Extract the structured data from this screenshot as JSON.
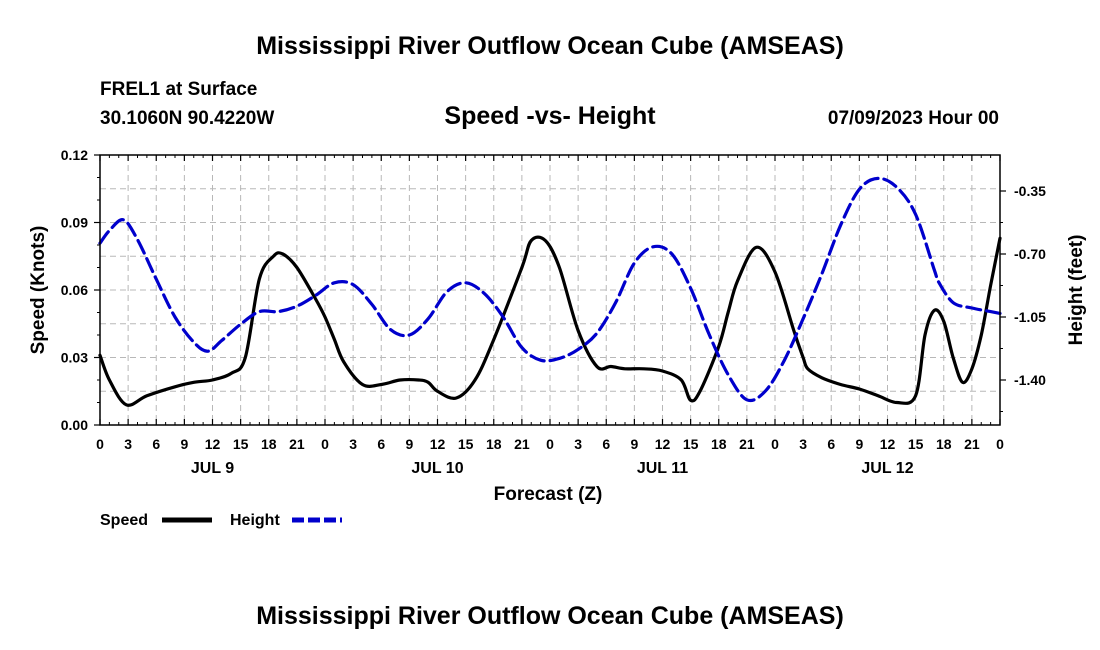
{
  "page": {
    "title_top": "Mississippi River Outflow Ocean Cube (AMSEAS)",
    "station": "FREL1 at Surface",
    "coords": "30.1060N  90.4220W",
    "date": "07/09/2023 Hour 00",
    "title_bottom": "Mississippi River Outflow Ocean Cube (AMSEAS)"
  },
  "colors": {
    "speed": "#000000",
    "height": "#0000cc"
  },
  "chart_data": {
    "type": "line",
    "title": "Speed -vs- Height",
    "xlabel": "Forecast (Z)",
    "ylabel": "Speed (Knots)",
    "y2label": "Height (feet)",
    "xlim": [
      0,
      96
    ],
    "ylim": [
      0,
      0.12
    ],
    "y2lim": [
      -1.65,
      -0.15
    ],
    "yticks": [
      "0.00",
      "0.03",
      "0.06",
      "0.09",
      "0.12"
    ],
    "y2ticks": [
      "-0.35",
      "-0.70",
      "-1.05",
      "-1.40"
    ],
    "xtick_labels": [
      "0",
      "3",
      "6",
      "9",
      "12",
      "15",
      "18",
      "21",
      "0",
      "3",
      "6",
      "9",
      "12",
      "15",
      "18",
      "21",
      "0",
      "3",
      "6",
      "9",
      "12",
      "15",
      "18",
      "21",
      "0",
      "3",
      "6",
      "9",
      "12",
      "15",
      "18",
      "21",
      "0"
    ],
    "day_labels": [
      {
        "label": "JUL 9",
        "hour": 12
      },
      {
        "label": "JUL 10",
        "hour": 36
      },
      {
        "label": "JUL 11",
        "hour": 60
      },
      {
        "label": "JUL 12",
        "hour": 84
      }
    ],
    "legend": [
      {
        "name": "Speed",
        "style": "solid"
      },
      {
        "name": "Height",
        "style": "dashed"
      }
    ],
    "series": [
      {
        "name": "Speed",
        "axis": "left",
        "x": [
          0,
          1,
          2.8,
          5,
          8,
          10,
          12,
          14,
          15.5,
          17,
          18.5,
          19.5,
          21,
          23,
          24,
          25,
          26,
          28,
          30,
          32,
          34,
          35,
          36,
          38,
          40,
          42,
          45,
          46,
          47.5,
          49,
          51,
          53,
          54.5,
          56,
          58,
          60,
          62,
          63,
          64,
          66,
          67,
          68,
          70,
          72,
          74,
          75,
          75.5,
          77,
          79,
          81,
          83,
          85,
          87,
          88,
          89,
          90,
          91,
          92,
          93,
          94,
          95,
          96
        ],
        "y": [
          0.031,
          0.02,
          0.009,
          0.013,
          0.017,
          0.019,
          0.02,
          0.023,
          0.03,
          0.065,
          0.075,
          0.076,
          0.07,
          0.056,
          0.048,
          0.038,
          0.028,
          0.018,
          0.018,
          0.02,
          0.02,
          0.019,
          0.015,
          0.012,
          0.02,
          0.038,
          0.07,
          0.082,
          0.082,
          0.07,
          0.042,
          0.026,
          0.026,
          0.025,
          0.025,
          0.024,
          0.02,
          0.011,
          0.015,
          0.035,
          0.05,
          0.064,
          0.079,
          0.068,
          0.042,
          0.03,
          0.025,
          0.021,
          0.018,
          0.016,
          0.013,
          0.01,
          0.013,
          0.04,
          0.051,
          0.046,
          0.03,
          0.019,
          0.025,
          0.04,
          0.062,
          0.083
        ]
      },
      {
        "name": "Height",
        "axis": "right",
        "x": [
          0,
          1,
          2.5,
          4,
          6,
          8,
          10,
          11.5,
          13,
          15,
          17,
          19,
          21,
          23,
          25,
          27,
          29,
          31,
          33,
          35,
          37,
          39,
          41,
          43,
          45,
          47,
          49,
          51,
          53,
          55,
          57,
          59,
          61,
          63,
          65,
          67,
          69,
          71,
          73,
          75,
          77,
          79,
          81,
          83,
          85,
          87,
          89,
          89.5,
          91,
          93,
          95,
          96
        ],
        "y": [
          -0.64,
          -0.57,
          -0.51,
          -0.62,
          -0.84,
          -1.05,
          -1.19,
          -1.24,
          -1.18,
          -1.09,
          -1.02,
          -1.02,
          -0.99,
          -0.93,
          -0.86,
          -0.87,
          -0.98,
          -1.12,
          -1.15,
          -1.06,
          -0.91,
          -0.86,
          -0.92,
          -1.05,
          -1.22,
          -1.29,
          -1.28,
          -1.23,
          -1.14,
          -0.97,
          -0.75,
          -0.66,
          -0.7,
          -0.89,
          -1.15,
          -1.37,
          -1.51,
          -1.46,
          -1.29,
          -1.06,
          -0.81,
          -0.54,
          -0.34,
          -0.28,
          -0.33,
          -0.48,
          -0.79,
          -0.86,
          -0.97,
          -1.0,
          -1.02,
          -1.03
        ]
      }
    ]
  }
}
